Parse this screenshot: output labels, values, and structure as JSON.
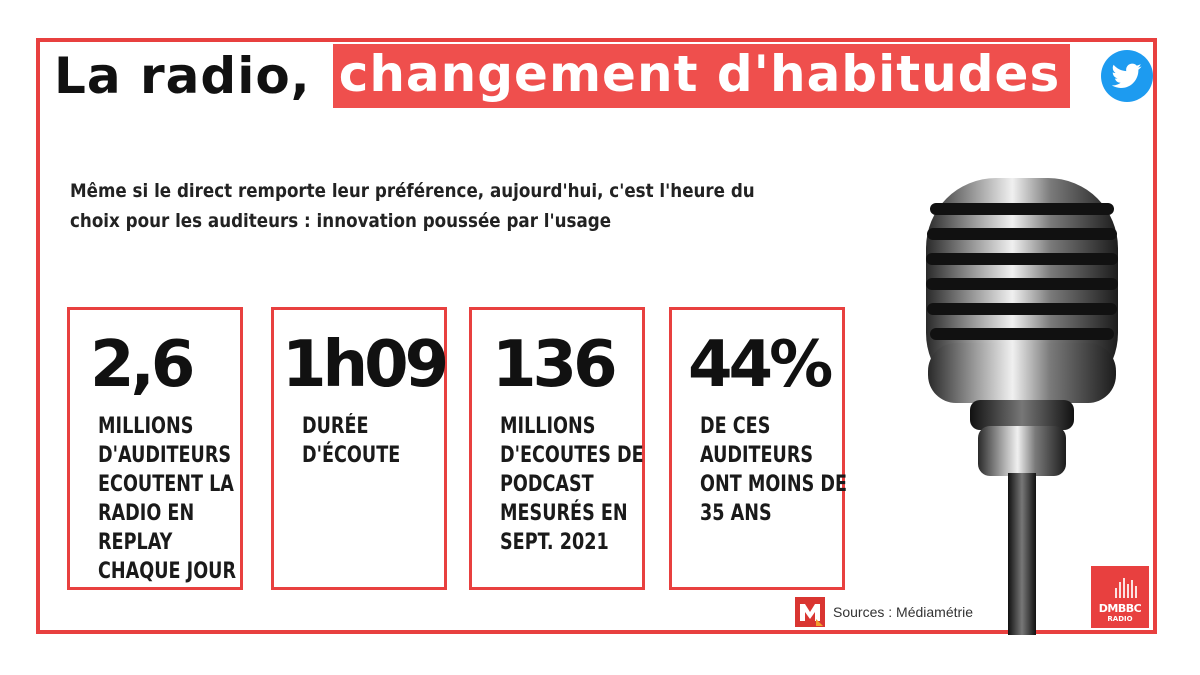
{
  "title": {
    "plain": "La radio,",
    "highlight": "changement d'habitudes"
  },
  "subtitle": "Même si le direct remporte leur préférence, aujourd'hui, c'est l'heure du choix pour les auditeurs : innovation poussée par l'usage",
  "stats": [
    {
      "value": "2,6",
      "description": "MILLIONS D'AUDITEURS ECOUTENT LA RADIO EN REPLAY CHAQUE JOUR"
    },
    {
      "value": "1h09",
      "description": "DURÉE D'ÉCOUTE"
    },
    {
      "value": "136",
      "description": "MILLIONS D'ECOUTES DE PODCAST MESURÉS EN SEPT. 2021"
    },
    {
      "value": "44%",
      "description": "DE CES AUDITEURS ONT MOINS DE 35 ANS"
    }
  ],
  "sources": "Sources : Médiamétrie",
  "brand": {
    "name": "DMBBC",
    "sub": "RADIO"
  },
  "icons": {
    "social": "twitter-icon",
    "microphone": "microphone-icon",
    "source_logo": "mediametrie-logo-icon"
  },
  "colors": {
    "accent": "#e8403f",
    "twitter": "#1d9bf0"
  }
}
